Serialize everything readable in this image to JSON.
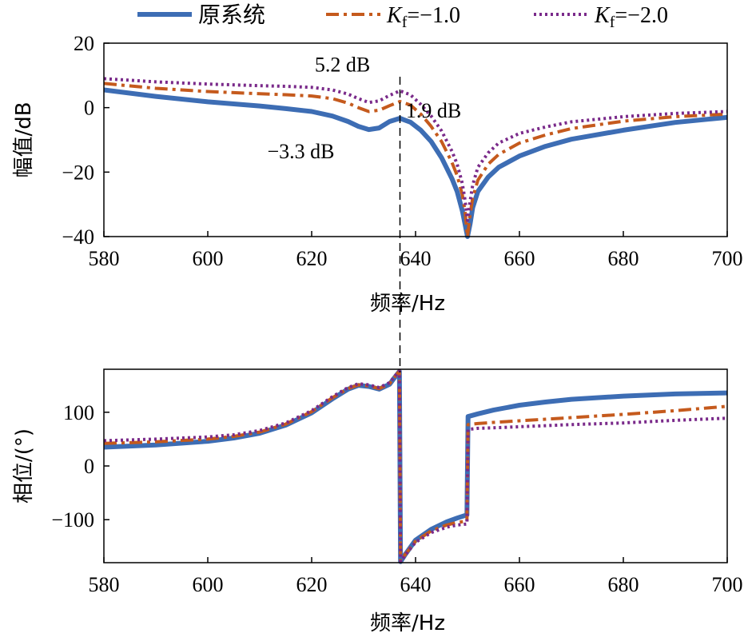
{
  "legend": {
    "items": [
      {
        "label": "原系统",
        "base": "",
        "sub": "",
        "value": "",
        "color": "#3d6db4",
        "dash": "solid",
        "series_index": 0
      },
      {
        "label": "",
        "base": "K",
        "sub": "f",
        "value": "=−1.0",
        "color": "#c55a1d",
        "dash": "dashdot",
        "series_index": 1
      },
      {
        "label": "",
        "base": "K",
        "sub": "f",
        "value": "=−2.0",
        "color": "#7a2a8a",
        "dash": "dotted",
        "series_index": 2
      }
    ]
  },
  "chart_data": [
    {
      "type": "line",
      "panel": "magnitude",
      "xlabel": "频率/Hz",
      "ylabel": "幅值/dB",
      "xlim": [
        580,
        700
      ],
      "ylim": [
        -40,
        20
      ],
      "xticks": [
        580,
        600,
        620,
        640,
        660,
        680,
        700
      ],
      "yticks": [
        -40,
        -20,
        0,
        20
      ],
      "grid": false,
      "series": [
        {
          "name": "原系统",
          "color": "#3d6db4",
          "x": [
            580,
            590,
            600,
            610,
            615,
            620,
            624,
            627,
            629,
            631,
            633,
            635,
            637,
            639,
            641,
            643,
            645,
            647,
            648,
            649,
            649.5,
            650,
            650.5,
            651,
            652,
            654,
            656,
            660,
            665,
            670,
            680,
            690,
            700
          ],
          "y": [
            5.5,
            3.5,
            1.8,
            0.5,
            -0.3,
            -1.2,
            -2.6,
            -4.3,
            -5.8,
            -6.8,
            -6.3,
            -4.3,
            -3.3,
            -4.5,
            -7.0,
            -10.5,
            -15.5,
            -22,
            -26,
            -32,
            -36,
            -40,
            -36,
            -31,
            -26,
            -21.5,
            -18.5,
            -15,
            -12,
            -9.8,
            -7,
            -4.6,
            -3
          ]
        },
        {
          "name": "K_f=-1.0",
          "color": "#c55a1d",
          "x": [
            580,
            590,
            600,
            610,
            615,
            620,
            624,
            627,
            629,
            631,
            633,
            635,
            637,
            639,
            641,
            643,
            645,
            647,
            648,
            649,
            649.5,
            650,
            650.5,
            651,
            652,
            654,
            656,
            660,
            665,
            670,
            680,
            690,
            700
          ],
          "y": [
            7.5,
            6.0,
            5.0,
            4.3,
            4.0,
            3.6,
            2.8,
            1.4,
            0.0,
            -1.2,
            -0.8,
            0.6,
            1.9,
            0.8,
            -2.0,
            -5.8,
            -10.5,
            -17,
            -21,
            -27,
            -32,
            -40,
            -33,
            -28,
            -22.5,
            -17.5,
            -14.5,
            -11,
            -8.5,
            -6.5,
            -4.2,
            -2.8,
            -2.0
          ]
        },
        {
          "name": "K_f=-2.0",
          "color": "#7a2a8a",
          "x": [
            580,
            590,
            600,
            610,
            615,
            620,
            624,
            627,
            629,
            631,
            633,
            635,
            637,
            639,
            641,
            643,
            645,
            647,
            648,
            649,
            649.5,
            650,
            650.5,
            651,
            652,
            654,
            656,
            660,
            665,
            670,
            680,
            690,
            700
          ],
          "y": [
            9.0,
            8.0,
            7.3,
            6.8,
            6.6,
            6.3,
            5.5,
            4.2,
            2.8,
            1.6,
            2.1,
            3.8,
            5.2,
            4.0,
            1.0,
            -2.6,
            -7.2,
            -13.5,
            -17.5,
            -23.5,
            -28.5,
            -35,
            -29,
            -24,
            -18.5,
            -14,
            -11,
            -8,
            -6,
            -4.4,
            -2.8,
            -1.8,
            -1.2
          ]
        }
      ],
      "annotations": [
        {
          "text": "5.2 dB",
          "x": 637,
          "y": 5.2
        },
        {
          "text": "1.9 dB",
          "x": 637,
          "y": 1.9
        },
        {
          "text": "−3.3 dB",
          "x": 637,
          "y": -3.3
        }
      ],
      "marker_line_x": 637
    },
    {
      "type": "line",
      "panel": "phase",
      "xlabel": "频率/Hz",
      "ylabel": "相位/(°)",
      "xlim": [
        580,
        700
      ],
      "ylim": [
        -180,
        180
      ],
      "xticks": [
        580,
        600,
        620,
        640,
        660,
        680,
        700
      ],
      "yticks": [
        -100,
        0,
        100
      ],
      "grid": false,
      "series": [
        {
          "name": "原系统",
          "color": "#3d6db4",
          "x": [
            580,
            590,
            600,
            605,
            610,
            615,
            620,
            624,
            627,
            629,
            631,
            633,
            635,
            636,
            636.9,
            637.1,
            638,
            640,
            643,
            646,
            648,
            649.9,
            650.1,
            652,
            655,
            660,
            665,
            670,
            680,
            690,
            700
          ],
          "y": [
            35,
            39,
            46,
            52,
            61,
            76,
            99,
            125,
            143,
            150,
            148,
            143,
            152,
            165,
            176,
            -178,
            -165,
            -138,
            -118,
            -104,
            -97,
            -91,
            92,
            97,
            104,
            113,
            119,
            124,
            130,
            134,
            136
          ]
        },
        {
          "name": "K_f=-1.0",
          "color": "#c55a1d",
          "x": [
            580,
            590,
            600,
            605,
            610,
            615,
            620,
            624,
            627,
            629,
            631,
            633,
            635,
            636,
            636.9,
            637.1,
            638,
            640,
            643,
            646,
            648,
            649.9,
            650.1,
            652,
            655,
            660,
            665,
            670,
            680,
            690,
            700
          ],
          "y": [
            42,
            45,
            50,
            55,
            63,
            78,
            101,
            127,
            144,
            151,
            149,
            144,
            153,
            166,
            177,
            -178,
            -165,
            -140,
            -121,
            -110,
            -105,
            -103,
            77,
            79,
            81,
            84,
            87,
            90,
            96,
            103,
            111
          ]
        },
        {
          "name": "K_f=-2.0",
          "color": "#7a2a8a",
          "x": [
            580,
            590,
            600,
            605,
            610,
            615,
            620,
            624,
            627,
            629,
            631,
            633,
            635,
            636,
            636.9,
            637.1,
            638,
            640,
            643,
            646,
            648,
            649.9,
            650.1,
            652,
            655,
            660,
            665,
            670,
            680,
            690,
            700
          ],
          "y": [
            47,
            50,
            54,
            58,
            66,
            80,
            103,
            129,
            146,
            153,
            151,
            146,
            155,
            167,
            177,
            -178,
            -166,
            -142,
            -124,
            -114,
            -110,
            -108,
            68,
            70,
            71,
            73,
            75,
            77,
            80,
            85,
            89
          ]
        }
      ],
      "marker_line_x": 637
    }
  ]
}
